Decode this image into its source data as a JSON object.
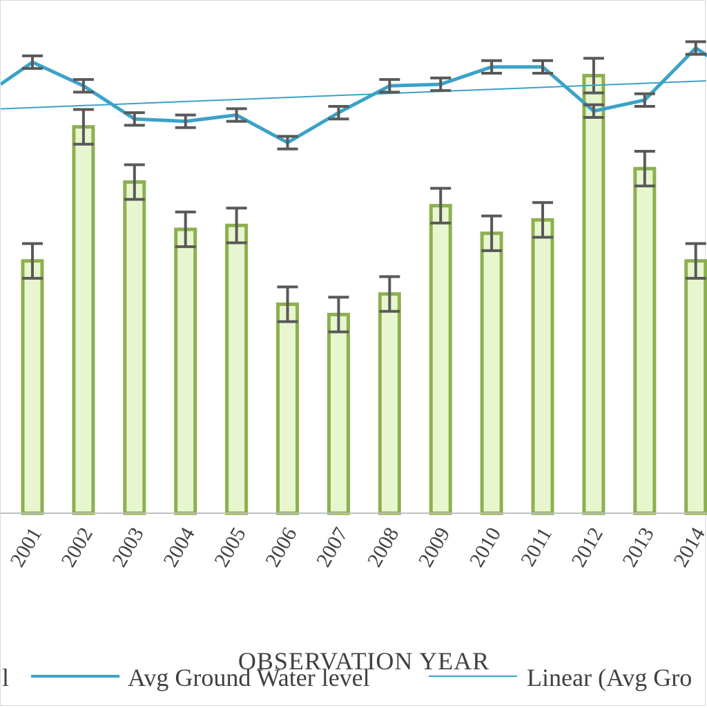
{
  "chart_data": {
    "type": "bar",
    "xlabel": "OBSERVATION YEAR",
    "categories": [
      "2001",
      "2002",
      "2003",
      "2004",
      "2005",
      "2006",
      "2007",
      "2008",
      "2009",
      "2010",
      "2011",
      "2012",
      "2013",
      "2014"
    ],
    "series": [
      {
        "name": "",
        "type": "bar",
        "values": [
          320,
          490,
          420,
          360,
          365,
          265,
          252,
          278,
          390,
          355,
          372,
          555,
          437,
          320
        ],
        "error": 22,
        "color": "#8db050",
        "fill": "#e8f6cf"
      },
      {
        "name": "Avg Ground Water level",
        "type": "line",
        "values": [
          572,
          542,
          500,
          497,
          505,
          470,
          508,
          542,
          544,
          566,
          566,
          510,
          524,
          590
        ],
        "error": 8,
        "color": "#3aa2c8"
      },
      {
        "name": "Linear (Avg Ground Water level)",
        "type": "trendline",
        "color": "#3aa2c8"
      }
    ],
    "ylim": [
      0,
      650
    ],
    "grid": false,
    "legend": "bottom",
    "legend_labels": {
      "first": "l",
      "line": "Avg Ground Water level",
      "trend": "Linear (Avg Gro"
    }
  }
}
